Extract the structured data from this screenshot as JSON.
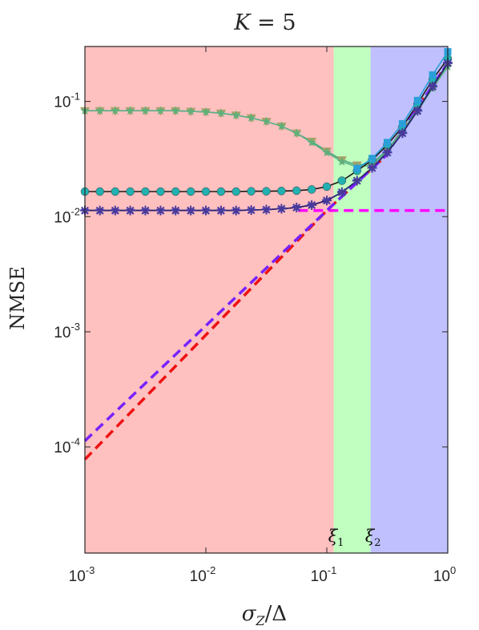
{
  "chart_data": {
    "type": "line",
    "title_parts": {
      "var": "K",
      "rest": " = 5"
    },
    "xlabel_parts": {
      "sigma": "σ",
      "sub": "Z",
      "rest": "/Δ"
    },
    "ylabel": "NMSE",
    "xscale": "log",
    "yscale": "log",
    "xlim": [
      0.001,
      1
    ],
    "ylim": [
      1.2e-05,
      0.3
    ],
    "grid": false,
    "x_ticks": [
      {
        "base": "10",
        "exp": "-3",
        "value": 0.001
      },
      {
        "base": "10",
        "exp": "-2",
        "value": 0.01
      },
      {
        "base": "10",
        "exp": "-1",
        "value": 0.1
      },
      {
        "base": "10",
        "exp": "0",
        "value": 1
      }
    ],
    "y_ticks": [
      {
        "base": "10",
        "exp": "-4",
        "value": 0.0001
      },
      {
        "base": "10",
        "exp": "-3",
        "value": 0.001
      },
      {
        "base": "10",
        "exp": "-2",
        "value": 0.01
      },
      {
        "base": "10",
        "exp": "-1",
        "value": 0.1
      }
    ],
    "regions": [
      {
        "from": 0.001,
        "to": 0.114,
        "color": "#ffc0c0"
      },
      {
        "from": 0.114,
        "to": 0.23,
        "color": "#c0ffc0"
      },
      {
        "from": 0.23,
        "to": 1,
        "color": "#c0c0ff"
      }
    ],
    "thresholds": [
      {
        "label_base": "ξ",
        "label_sub": "1",
        "x": 0.114
      },
      {
        "label_base": "ξ",
        "label_sub": "2",
        "x": 0.23
      }
    ],
    "x": [
      0.001,
      0.00133,
      0.00178,
      0.00237,
      0.00316,
      0.00422,
      0.00562,
      0.0075,
      0.01,
      0.01334,
      0.01778,
      0.02371,
      0.03162,
      0.04217,
      0.05623,
      0.07499,
      0.1,
      0.13335,
      0.17783,
      0.23714,
      0.31623,
      0.4217,
      0.56234,
      0.74989,
      1.0
    ],
    "series": [
      {
        "marker": "triangle-down",
        "color": "#a8a06a",
        "line_color": "#4aa87a",
        "values": [
          0.083,
          0.083,
          0.083,
          0.083,
          0.083,
          0.083,
          0.083,
          0.082,
          0.081,
          0.079,
          0.076,
          0.072,
          0.067,
          0.061,
          0.053,
          0.045,
          0.037,
          0.031,
          0.028,
          0.029,
          0.038,
          0.056,
          0.085,
          0.135,
          0.205
        ]
      },
      {
        "marker": "star",
        "color": "#5fb07a",
        "line_color": "#60b088",
        "values": [
          0.083,
          0.083,
          0.083,
          0.083,
          0.083,
          0.083,
          0.083,
          0.082,
          0.081,
          0.079,
          0.076,
          0.072,
          0.067,
          0.061,
          0.053,
          0.044,
          0.036,
          0.03,
          0.027,
          0.028,
          0.037,
          0.054,
          0.082,
          0.13,
          0.2
        ]
      },
      {
        "marker": "circle",
        "color": "#22b0b0",
        "line_color": "#1a1a1a",
        "values": [
          0.0165,
          0.0165,
          0.0165,
          0.0165,
          0.0165,
          0.0165,
          0.0165,
          0.0165,
          0.0165,
          0.0165,
          0.0165,
          0.0166,
          0.0166,
          0.0167,
          0.0168,
          0.0172,
          0.0182,
          0.0205,
          0.025,
          0.031,
          0.042,
          0.06,
          0.095,
          0.155,
          0.235
        ]
      },
      {
        "marker": "square",
        "color": "#2a9fd8",
        "line_color": "#2a9fd8",
        "values": [
          null,
          null,
          null,
          null,
          null,
          null,
          null,
          null,
          null,
          null,
          null,
          null,
          null,
          null,
          null,
          null,
          null,
          null,
          0.0262,
          0.032,
          0.044,
          0.064,
          0.102,
          0.17,
          0.27
        ]
      },
      {
        "marker": "star",
        "color": "#2f3fd0",
        "line_color": "#1a1a5a",
        "values": [
          0.0113,
          0.0113,
          0.0113,
          0.0113,
          0.0113,
          0.0113,
          0.0113,
          0.0113,
          0.0113,
          0.0113,
          0.0113,
          0.0114,
          0.0115,
          0.0117,
          0.012,
          0.0126,
          0.0138,
          0.0163,
          0.0205,
          0.0265,
          0.036,
          0.053,
          0.083,
          0.135,
          0.215
        ]
      },
      {
        "marker": "asterisk",
        "color": "#4a3a9a",
        "line_color": "#2a2070",
        "values": [
          0.0113,
          0.0113,
          0.0113,
          0.0113,
          0.0113,
          0.0113,
          0.0113,
          0.0113,
          0.0113,
          0.0113,
          0.0113,
          0.0114,
          0.0115,
          0.0117,
          0.012,
          0.0126,
          0.0138,
          0.0163,
          0.0205,
          0.0265,
          0.036,
          0.053,
          0.083,
          0.135,
          0.215
        ]
      }
    ],
    "dashed_lines": [
      {
        "color": "#ff00ff",
        "x": [
          0.058,
          1.0
        ],
        "values": [
          0.0113,
          0.0113
        ]
      },
      {
        "color": "#ee1111",
        "x": [
          0.001,
          0.1,
          0.3,
          1.0
        ],
        "values": [
          7.8e-05,
          0.0113,
          0.033,
          0.215
        ]
      },
      {
        "color": "#7722ff",
        "x": [
          0.001,
          0.1,
          0.3,
          1.0
        ],
        "values": [
          0.000113,
          0.0113,
          0.033,
          0.215
        ]
      }
    ]
  }
}
